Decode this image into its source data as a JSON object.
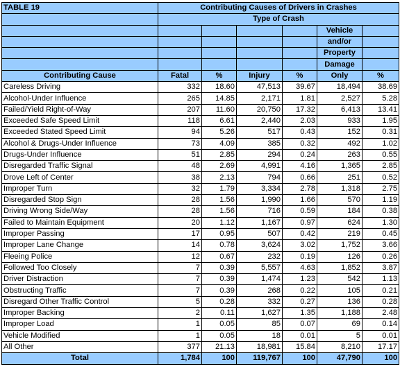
{
  "table_label": "TABLE 19",
  "title": "Contributing Causes of Drivers in Crashes",
  "subtitle": "Type of Crash",
  "vehicle_header": [
    "Vehicle",
    "and/or",
    "Property",
    "Damage"
  ],
  "columns": {
    "cause": "Contributing Cause",
    "fatal": "Fatal",
    "pct1": "%",
    "injury": "Injury",
    "pct2": "%",
    "pdo": "Only",
    "pct3": "%"
  },
  "rows": [
    [
      "Careless Driving",
      "332",
      "18.60",
      "47,513",
      "39.67",
      "18,494",
      "38.69"
    ],
    [
      "Alcohol-Under Influence",
      "265",
      "14.85",
      "2,171",
      "1.81",
      "2,527",
      "5.28"
    ],
    [
      "Failed/Yield Right-of-Way",
      "207",
      "11.60",
      "20,750",
      "17.32",
      "6,413",
      "13.41"
    ],
    [
      "Exceeded Safe Speed Limit",
      "118",
      "6.61",
      "2,440",
      "2.03",
      "933",
      "1.95"
    ],
    [
      "Exceeded Stated Speed Limit",
      "94",
      "5.26",
      "517",
      "0.43",
      "152",
      "0.31"
    ],
    [
      "Alcohol & Drugs-Under Influence",
      "73",
      "4.09",
      "385",
      "0.32",
      "492",
      "1.02"
    ],
    [
      "Drugs-Under Influence",
      "51",
      "2.85",
      "294",
      "0.24",
      "263",
      "0.55"
    ],
    [
      "Disregarded Traffic Signal",
      "48",
      "2.69",
      "4,991",
      "4.16",
      "1,365",
      "2.85"
    ],
    [
      "Drove Left of Center",
      "38",
      "2.13",
      "794",
      "0.66",
      "251",
      "0.52"
    ],
    [
      "Improper Turn",
      "32",
      "1.79",
      "3,334",
      "2.78",
      "1,318",
      "2.75"
    ],
    [
      "Disregarded Stop Sign",
      "28",
      "1.56",
      "1,990",
      "1.66",
      "570",
      "1.19"
    ],
    [
      "Driving Wrong Side/Way",
      "28",
      "1.56",
      "716",
      "0.59",
      "184",
      "0.38"
    ],
    [
      "Failed to Maintain Equipment",
      "20",
      "1.12",
      "1,167",
      "0.97",
      "624",
      "1.30"
    ],
    [
      "Improper Passing",
      "17",
      "0.95",
      "507",
      "0.42",
      "219",
      "0.45"
    ],
    [
      "Improper Lane Change",
      "14",
      "0.78",
      "3,624",
      "3.02",
      "1,752",
      "3.66"
    ],
    [
      "Fleeing Police",
      "12",
      "0.67",
      "232",
      "0.19",
      "126",
      "0.26"
    ],
    [
      "Followed Too Closely",
      "7",
      "0.39",
      "5,557",
      "4.63",
      "1,852",
      "3.87"
    ],
    [
      "Driver Distraction",
      "7",
      "0.39",
      "1,474",
      "1.23",
      "542",
      "1.13"
    ],
    [
      "Obstructing Traffic",
      "7",
      "0.39",
      "268",
      "0.22",
      "105",
      "0.21"
    ],
    [
      "Disregard Other Traffic Control",
      "5",
      "0.28",
      "332",
      "0.27",
      "136",
      "0.28"
    ],
    [
      "Improper Backing",
      "2",
      "0.11",
      "1,627",
      "1.35",
      "1,188",
      "2.48"
    ],
    [
      "Improper Load",
      "1",
      "0.05",
      "85",
      "0.07",
      "69",
      "0.14"
    ],
    [
      "Vehicle Modified",
      "1",
      "0.05",
      "18",
      "0.01",
      "5",
      "0.01"
    ],
    [
      "All Other",
      "377",
      "21.13",
      "18,981",
      "15.84",
      "8,210",
      "17.17"
    ]
  ],
  "total": [
    "Total",
    "1,784",
    "100",
    "119,767",
    "100",
    "47,790",
    "100"
  ],
  "colors": {
    "header_bg": "#99ccff",
    "border": "#000000"
  }
}
